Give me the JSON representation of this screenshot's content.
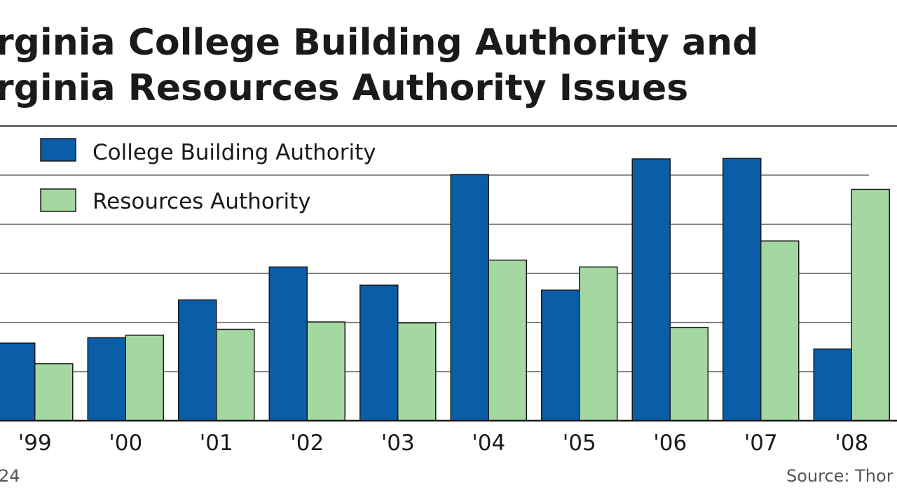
{
  "chart_data": {
    "type": "bar",
    "title_lines": [
      "rginia College Building Authority and",
      "rginia Resources Authority Issues"
    ],
    "categories": [
      "'99",
      "'00",
      "'01",
      "'02",
      "'03",
      "'04",
      "'05",
      "'06",
      "'07",
      "'08"
    ],
    "series": [
      {
        "name": "College Building Authority",
        "color": "#0a5ea8",
        "values": [
          1.58,
          1.69,
          2.46,
          3.13,
          2.76,
          5.01,
          2.66,
          5.33,
          5.34,
          1.46
        ]
      },
      {
        "name": "Resources Authority",
        "color": "#a3d9a0",
        "values": [
          1.16,
          1.74,
          1.86,
          2.01,
          1.99,
          3.27,
          3.13,
          1.9,
          3.66,
          4.71
        ]
      }
    ],
    "ylim": [
      0,
      6
    ],
    "gridlines": true,
    "legend_position": "top-left",
    "xlabel": "",
    "ylabel": ""
  },
  "footer": {
    "left": "24",
    "right": "Source: Thor"
  }
}
